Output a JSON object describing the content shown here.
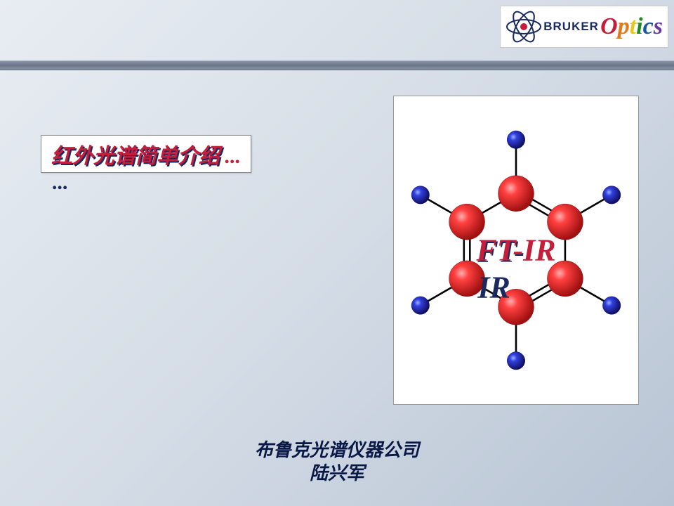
{
  "logo": {
    "brand": "BRUKER",
    "product": "Optics",
    "optics_colors": [
      "#c41e3a",
      "#e67817",
      "#e6c817",
      "#1a8a1a",
      "#1a5a9a",
      "#6a3a9a"
    ],
    "atom_nucleus": "#c41e3a",
    "atom_orbit": "#1a2a5e"
  },
  "title": "红外光谱简单介绍 ...",
  "molecule": {
    "label": "FT-IR",
    "ring_atom_color": "#d42020",
    "ring_highlight": "#ff8080",
    "outer_atom_color": "#2030c0",
    "outer_highlight": "#8090ff",
    "bond_color": "#000000",
    "ring_radius": 95,
    "outer_radius": 185,
    "ring_atom_r": 30,
    "outer_atom_r": 15
  },
  "footer": {
    "line1": "布鲁克光谱仪器公司",
    "line2": "陆兴军"
  },
  "colors": {
    "title_fore": "#c41e3a",
    "title_shadow": "#1a2a5e",
    "footer_text": "#0a1845"
  }
}
